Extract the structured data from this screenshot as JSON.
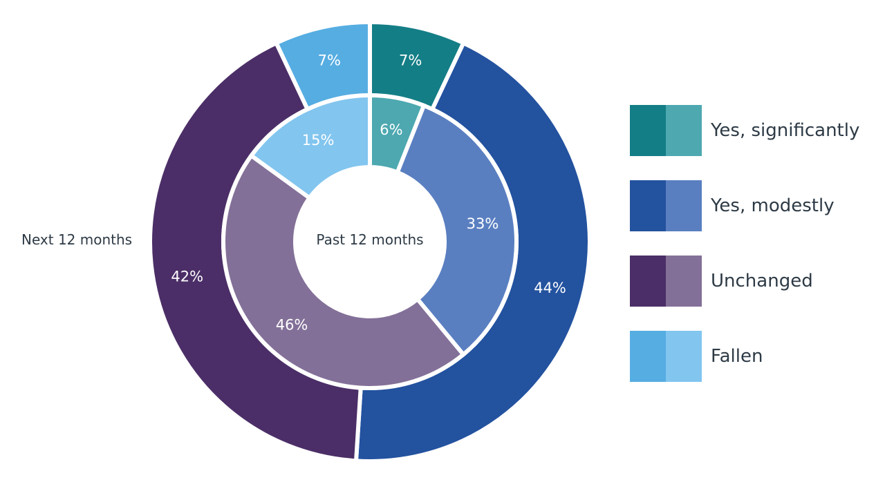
{
  "chart_data": {
    "type": "pie",
    "categories": [
      "Yes, significantly",
      "Yes, modestly",
      "Unchanged",
      "Fallen"
    ],
    "series": [
      {
        "name": "Past 12 months",
        "values": [
          6,
          33,
          46,
          15
        ],
        "value_labels": [
          "6%",
          "33%",
          "46%",
          "15%"
        ],
        "colors": [
          "#4da8b0",
          "#5a7fc1",
          "#837098",
          "#82c5ef"
        ]
      },
      {
        "name": "Next 12 months",
        "values": [
          7,
          44,
          42,
          7
        ],
        "value_labels": [
          "7%",
          "44%",
          "42%",
          "7%"
        ],
        "colors": [
          "#147e86",
          "#23529f",
          "#4b2e67",
          "#56ade2"
        ]
      }
    ],
    "legend_position": "right",
    "start_angle_deg": 0,
    "direction": "clockwise",
    "legend": [
      {
        "label": "Yes, significantly",
        "colors": [
          "#147e86",
          "#4da8b0"
        ]
      },
      {
        "label": "Yes, modestly",
        "colors": [
          "#23529f",
          "#5a7fc1"
        ]
      },
      {
        "label": "Unchanged",
        "colors": [
          "#4b2e67",
          "#837098"
        ]
      },
      {
        "label": "Fallen",
        "colors": [
          "#56ade2",
          "#82c5ef"
        ]
      }
    ]
  }
}
